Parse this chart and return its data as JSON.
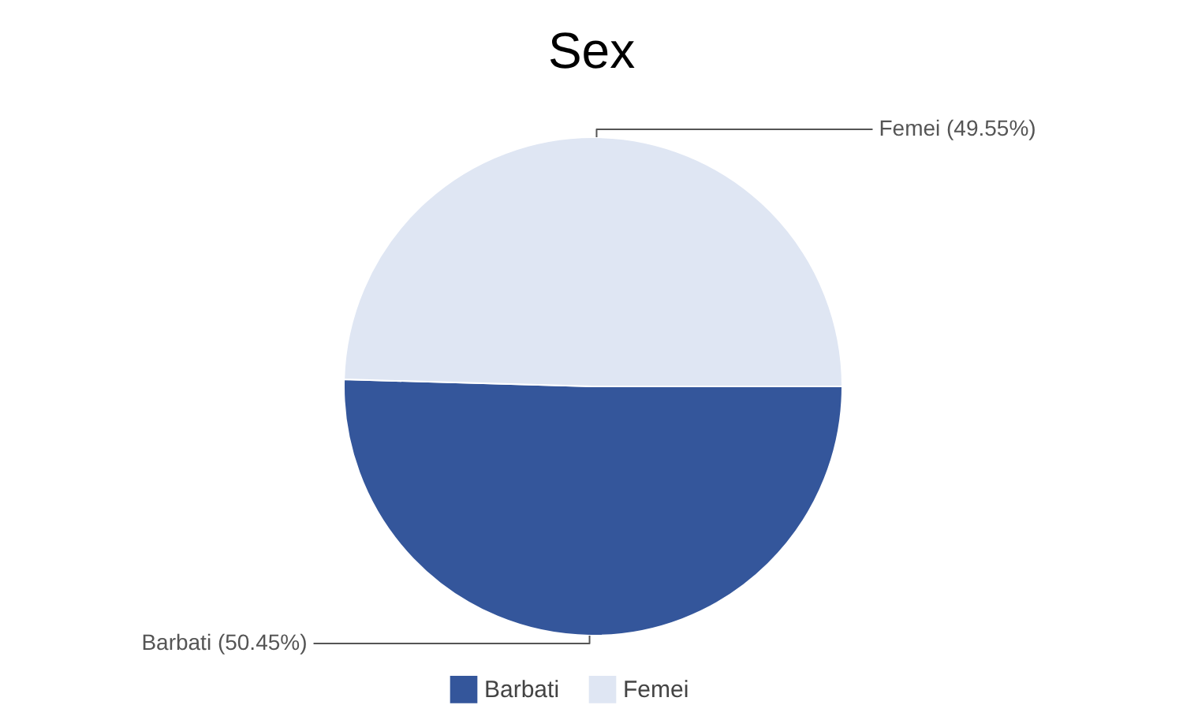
{
  "chart_data": {
    "type": "pie",
    "title": "Sex",
    "categories": [
      "Barbati",
      "Femei"
    ],
    "values": [
      50.45,
      49.55
    ],
    "colors": [
      "#34569b",
      "#dfe6f3"
    ],
    "value_labels": [
      "Barbati (50.45%)",
      "Femei (49.55%)"
    ],
    "legend": "bottom"
  }
}
